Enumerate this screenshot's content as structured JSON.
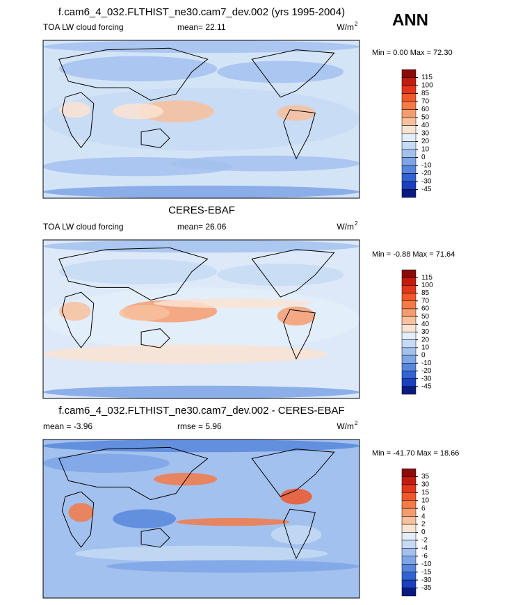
{
  "header": {
    "season": "ANN"
  },
  "chart_data": [
    {
      "type": "contour-map",
      "title": "f.cam6_4_032.FLTHIST_ne30.cam7_dev.002 (yrs 1995-2004)",
      "left_label": "TOA LW cloud forcing",
      "center_label": "mean=  22.11",
      "units": "W/m",
      "units_sup": "2",
      "minmax": "Min =   0.00 Max = 72.30",
      "base_color": "#d4e4f7",
      "levels": [
        115,
        100,
        85,
        70,
        60,
        50,
        40,
        30,
        20,
        10,
        0,
        -10,
        -20,
        -30,
        -45
      ],
      "colors": [
        "#8b0a0a",
        "#c21b0f",
        "#e2361a",
        "#f0582a",
        "#f47a48",
        "#f59c6f",
        "#f8c09c",
        "#fbe3d2",
        "#e4eefb",
        "#c6daf5",
        "#a3c1ee",
        "#7ea5e6",
        "#5886dc",
        "#3063d3",
        "#1a3fbf",
        "#0a1a80"
      ]
    },
    {
      "type": "contour-map",
      "title": "CERES-EBAF",
      "left_label": "TOA LW cloud forcing",
      "center_label": "mean=  26.06",
      "units": "W/m",
      "units_sup": "2",
      "minmax": "Min = -0.88 Max = 71.64",
      "base_color": "#dde9f8",
      "levels": [
        115,
        100,
        85,
        70,
        60,
        50,
        40,
        30,
        20,
        10,
        0,
        -10,
        -20,
        -30,
        -45
      ],
      "colors": [
        "#8b0a0a",
        "#c21b0f",
        "#e2361a",
        "#f0582a",
        "#f47a48",
        "#f59c6f",
        "#f8c09c",
        "#fbe3d2",
        "#e4eefb",
        "#c6daf5",
        "#a3c1ee",
        "#7ea5e6",
        "#5886dc",
        "#3063d3",
        "#1a3fbf",
        "#0a1a80"
      ]
    },
    {
      "type": "contour-map",
      "title": "f.cam6_4_032.FLTHIST_ne30.cam7_dev.002 - CERES-EBAF",
      "left_label": "mean =  -3.96",
      "center_label": "rmse =   5.96",
      "units": "W/m",
      "units_sup": "2",
      "minmax": "Min = -41.70 Max =  18.66",
      "base_color": "#a3c1ee",
      "levels": [
        35,
        30,
        15,
        10,
        6,
        4,
        2,
        0,
        -2,
        -4,
        -6,
        -10,
        -15,
        -30,
        -35
      ],
      "colors": [
        "#8b0a0a",
        "#c21b0f",
        "#e2361a",
        "#f0582a",
        "#f47a48",
        "#f59c6f",
        "#f8c09c",
        "#fbe3d2",
        "#e4eefb",
        "#c6daf5",
        "#a3c1ee",
        "#7ea5e6",
        "#5886dc",
        "#3063d3",
        "#1a3fbf",
        "#0a1a80"
      ]
    }
  ]
}
